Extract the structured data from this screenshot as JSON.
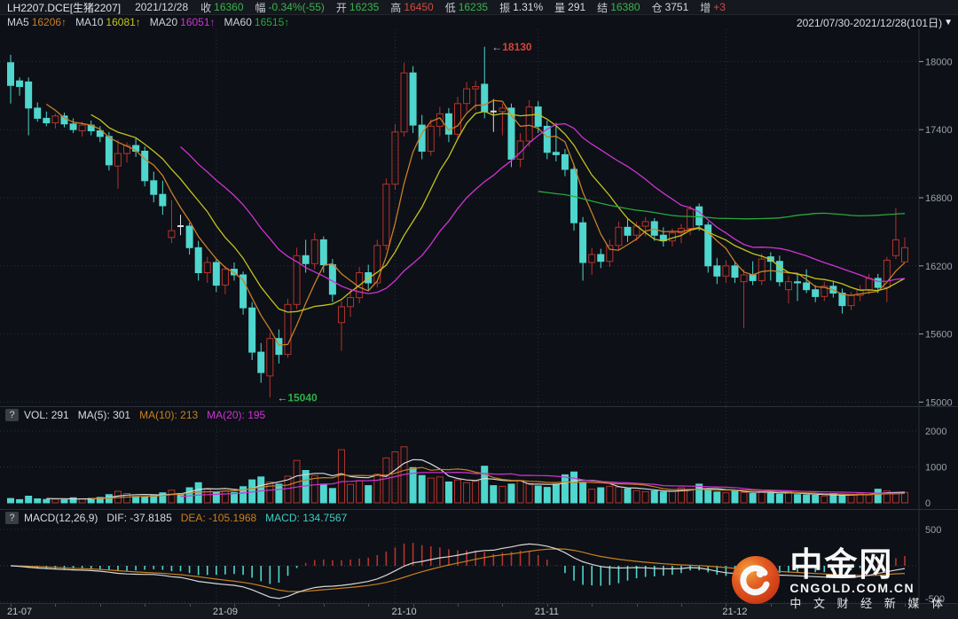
{
  "palette": {
    "green": "#3ab44d",
    "red": "#d24b41",
    "white": "#d8dce2",
    "gray": "#c6cad1",
    "up": "#b5342c",
    "down": "#4fd6ce",
    "doji": "#d9dde3",
    "ma5": "#c87f28",
    "ma10": "#c3c31d",
    "ma20": "#cf33d4",
    "ma60": "#27a93c",
    "axis_text": "#9aa0a8",
    "grid": "#2c313b",
    "axis_line": "#2c313b",
    "ann_high": "#d84338",
    "ann_low": "#2fae4a",
    "arrow": "#b9bdc3",
    "vol_ma5": "#d8d8d8",
    "vol_ma10": "#c8801f",
    "vol_ma20": "#cf33d4",
    "dif": "#d8d8d8",
    "dea": "#c8801f",
    "macd_val": "#3ecfc6"
  },
  "header": {
    "symbol": "LH2207.DCE[生猪2207]",
    "date": "2021/12/28",
    "fields": [
      {
        "label": "收",
        "value": "16360",
        "color": "green"
      },
      {
        "label": "幅",
        "value": "-0.34%(-55)",
        "color": "green"
      },
      {
        "label": "开",
        "value": "16235",
        "color": "green"
      },
      {
        "label": "高",
        "value": "16450",
        "color": "red"
      },
      {
        "label": "低",
        "value": "16235",
        "color": "green"
      },
      {
        "label": "振",
        "value": "1.31%",
        "color": "white"
      },
      {
        "label": "量",
        "value": "291",
        "color": "white"
      },
      {
        "label": "结",
        "value": "16380",
        "color": "green"
      },
      {
        "label": "仓",
        "value": "3751",
        "color": "white"
      },
      {
        "label": "增",
        "value": "+3",
        "color": "red"
      }
    ],
    "ma_row": [
      {
        "label": "MA5",
        "value": "16206↑",
        "color": "#c87f28"
      },
      {
        "label": "MA10",
        "value": "16081↑",
        "color": "#c3c31d"
      },
      {
        "label": "MA20",
        "value": "16051↑",
        "color": "#cf33d4"
      },
      {
        "label": "MA60",
        "value": "16515↑",
        "color": "#27a93c"
      }
    ],
    "range_selector": "2021/07/30-2021/12/28(101日)",
    "range_arrow": "▼"
  },
  "volume_pane": {
    "help": "?",
    "readout": [
      {
        "label": "VOL:",
        "value": "291",
        "color": "#d8dce2"
      },
      {
        "label": "MA(5):",
        "value": "301",
        "color": "#d8dce2"
      },
      {
        "label": "MA(10):",
        "value": "213",
        "color": "#c8801f"
      },
      {
        "label": "MA(20):",
        "value": "195",
        "color": "#cf33d4"
      }
    ],
    "axis_ticks": [
      2000,
      1000,
      0
    ]
  },
  "macd_pane": {
    "help": "?",
    "title": "MACD(12,26,9)",
    "readout": [
      {
        "label": "DIF:",
        "value": "-37.8185",
        "color": "#d8dce2"
      },
      {
        "label": "DEA:",
        "value": "-105.1968",
        "color": "#c8801f"
      },
      {
        "label": "MACD:",
        "value": "134.7567",
        "color": "#3ecfc6"
      }
    ],
    "axis_ticks": [
      500,
      -500
    ]
  },
  "watermark": {
    "title": "中金网",
    "domain": "CNGOLD.COM.CN",
    "tagline": "中 文 财 经 新 媒 体"
  },
  "price_axis": {
    "ticks": [
      18000,
      17400,
      16800,
      16200,
      15600,
      15000
    ]
  },
  "time_axis": {
    "labels": [
      {
        "text": "21-07",
        "i": 0
      },
      {
        "text": "21-09",
        "i": 23
      },
      {
        "text": "21-10",
        "i": 43
      },
      {
        "text": "21-11",
        "i": 59
      },
      {
        "text": "21-12",
        "i": 80
      }
    ]
  },
  "annotations": {
    "high": {
      "text": "18130",
      "i": 53,
      "price": 18130,
      "color": "#d84338"
    },
    "low": {
      "text": "15040",
      "i": 29,
      "price": 15040,
      "color": "#2fae4a"
    }
  },
  "chart_data": {
    "type": "candlestick+volume+macd",
    "symbol": "LH2207.DCE",
    "date_range": "2021/07/30-2021/12/28",
    "days": 101,
    "price_range": [
      15000,
      18000
    ],
    "vol_range": [
      0,
      2000
    ],
    "macd_range": [
      -500,
      500
    ],
    "ma_periods": [
      5,
      10,
      20,
      60
    ],
    "vol_ma_periods": [
      5,
      10,
      20
    ],
    "candles": [
      [
        17990,
        18060,
        17630,
        17790
      ],
      [
        17830,
        17860,
        17700,
        17780
      ],
      [
        17820,
        17860,
        17350,
        17590
      ],
      [
        17590,
        17640,
        17470,
        17500
      ],
      [
        17500,
        17560,
        17430,
        17460
      ],
      [
        17460,
        17540,
        17410,
        17520
      ],
      [
        17520,
        17550,
        17420,
        17450
      ],
      [
        17450,
        17500,
        17370,
        17400
      ],
      [
        17390,
        17470,
        17340,
        17440
      ],
      [
        17440,
        17480,
        17350,
        17390
      ],
      [
        17390,
        17430,
        17290,
        17340
      ],
      [
        17340,
        17380,
        17040,
        17090
      ],
      [
        17080,
        17310,
        16880,
        17190
      ],
      [
        17190,
        17290,
        17110,
        17260
      ],
      [
        17260,
        17330,
        17160,
        17210
      ],
      [
        17210,
        17250,
        16900,
        16950
      ],
      [
        16950,
        17030,
        16760,
        16830
      ],
      [
        16830,
        16950,
        16650,
        16730
      ],
      [
        16450,
        16780,
        16400,
        16510
      ],
      [
        16550,
        16650,
        16470,
        16550
      ],
      [
        16550,
        16580,
        16300,
        16360
      ],
      [
        16360,
        16420,
        16070,
        16140
      ],
      [
        16140,
        16280,
        16050,
        16230
      ],
      [
        16230,
        16260,
        15970,
        16030
      ],
      [
        16030,
        16200,
        15950,
        16170
      ],
      [
        16170,
        16230,
        16070,
        16120
      ],
      [
        16120,
        16150,
        15770,
        15830
      ],
      [
        15830,
        15880,
        15370,
        15440
      ],
      [
        15440,
        15520,
        15170,
        15260
      ],
      [
        15230,
        15610,
        15040,
        15560
      ],
      [
        15560,
        15640,
        15340,
        15420
      ],
      [
        15420,
        15910,
        15390,
        15860
      ],
      [
        15860,
        16360,
        15820,
        16290
      ],
      [
        16290,
        16430,
        16140,
        16220
      ],
      [
        16220,
        16490,
        16170,
        16430
      ],
      [
        16430,
        16460,
        16140,
        16210
      ],
      [
        16210,
        16260,
        15880,
        15950
      ],
      [
        15700,
        15890,
        15450,
        15840
      ],
      [
        15840,
        15990,
        15750,
        15920
      ],
      [
        15920,
        16190,
        15870,
        16140
      ],
      [
        16140,
        16210,
        15980,
        16050
      ],
      [
        16050,
        16430,
        16010,
        16380
      ],
      [
        16380,
        16970,
        16340,
        16920
      ],
      [
        16920,
        17450,
        16870,
        17380
      ],
      [
        17380,
        17990,
        17340,
        17900
      ],
      [
        17900,
        17960,
        17370,
        17440
      ],
      [
        17440,
        17530,
        17140,
        17210
      ],
      [
        17210,
        17490,
        17170,
        17430
      ],
      [
        17430,
        17600,
        17340,
        17540
      ],
      [
        17540,
        17590,
        17290,
        17360
      ],
      [
        17360,
        17690,
        17320,
        17630
      ],
      [
        17630,
        17820,
        17560,
        17760
      ],
      [
        17760,
        17830,
        17570,
        17780
      ],
      [
        17800,
        18130,
        17500,
        17560
      ],
      [
        17560,
        17670,
        17380,
        17560
      ],
      [
        17560,
        17630,
        17350,
        17590
      ],
      [
        17590,
        17630,
        17070,
        17140
      ],
      [
        17140,
        17370,
        17070,
        17300
      ],
      [
        17300,
        17660,
        17250,
        17600
      ],
      [
        17600,
        17650,
        17370,
        17430
      ],
      [
        17430,
        17480,
        17140,
        17200
      ],
      [
        17200,
        17460,
        17120,
        17180
      ],
      [
        17180,
        17230,
        16990,
        17050
      ],
      [
        17050,
        17100,
        16510,
        16580
      ],
      [
        16580,
        16630,
        16070,
        16230
      ],
      [
        16230,
        16360,
        16120,
        16300
      ],
      [
        16300,
        16350,
        16180,
        16240
      ],
      [
        16240,
        16430,
        16190,
        16380
      ],
      [
        16380,
        16590,
        16340,
        16540
      ],
      [
        16540,
        16610,
        16410,
        16470
      ],
      [
        16470,
        16590,
        16420,
        16550
      ],
      [
        16550,
        16630,
        16460,
        16590
      ],
      [
        16590,
        16620,
        16420,
        16470
      ],
      [
        16470,
        16540,
        16370,
        16420
      ],
      [
        16420,
        16530,
        16370,
        16490
      ],
      [
        16490,
        16570,
        16400,
        16530
      ],
      [
        16530,
        16730,
        16470,
        16700
      ],
      [
        16720,
        16750,
        16510,
        16560
      ],
      [
        16560,
        16590,
        16140,
        16200
      ],
      [
        16200,
        16270,
        16040,
        16110
      ],
      [
        16110,
        16250,
        16050,
        16200
      ],
      [
        16200,
        16240,
        16050,
        16100
      ],
      [
        16060,
        16170,
        15650,
        16120
      ],
      [
        16120,
        16240,
        16030,
        16070
      ],
      [
        16070,
        16310,
        16030,
        16260
      ],
      [
        16280,
        16320,
        16070,
        16240
      ],
      [
        16240,
        16290,
        16020,
        16060
      ],
      [
        15990,
        16110,
        15870,
        16060
      ],
      [
        16060,
        16130,
        15890,
        16050
      ],
      [
        16050,
        16170,
        15960,
        15990
      ],
      [
        15990,
        16030,
        15880,
        15930
      ],
      [
        15930,
        16060,
        15890,
        16020
      ],
      [
        16020,
        16070,
        15920,
        15960
      ],
      [
        15960,
        16000,
        15780,
        15850
      ],
      [
        15850,
        15970,
        15810,
        15940
      ],
      [
        15940,
        16030,
        15890,
        15990
      ],
      [
        15990,
        16130,
        15950,
        16090
      ],
      [
        16090,
        16130,
        15960,
        16010
      ],
      [
        16010,
        16280,
        15880,
        16250
      ],
      [
        16290,
        16710,
        16260,
        16430
      ],
      [
        16235,
        16450,
        16235,
        16360
      ]
    ],
    "volumes": [
      120,
      90,
      185,
      110,
      95,
      100,
      85,
      140,
      115,
      120,
      150,
      230,
      320,
      260,
      180,
      170,
      200,
      280,
      350,
      260,
      420,
      560,
      380,
      300,
      330,
      290,
      450,
      640,
      720,
      580,
      520,
      740,
      1180,
      900,
      760,
      520,
      400,
      1480,
      510,
      620,
      480,
      800,
      1250,
      1420,
      1560,
      980,
      760,
      690,
      720,
      580,
      640,
      560,
      600,
      1020,
      480,
      460,
      520,
      610,
      540,
      470,
      430,
      520,
      780,
      860,
      560,
      380,
      420,
      460,
      440,
      390,
      340,
      310,
      330,
      300,
      320,
      420,
      380,
      520,
      360,
      300,
      280,
      350,
      290,
      260,
      310,
      270,
      240,
      310,
      230,
      220,
      210,
      190,
      260,
      200,
      230,
      250,
      220,
      380,
      330,
      260,
      291
    ],
    "macd": {
      "dif": [
        0,
        -8,
        -20,
        -30,
        -38,
        -45,
        -50,
        -56,
        -60,
        -66,
        -74,
        -88,
        -104,
        -112,
        -116,
        -118,
        -120,
        -132,
        -150,
        -160,
        -185,
        -215,
        -230,
        -245,
        -258,
        -268,
        -290,
        -330,
        -380,
        -430,
        -450,
        -420,
        -370,
        -330,
        -300,
        -285,
        -280,
        -270,
        -255,
        -235,
        -215,
        -180,
        -130,
        -70,
        -5,
        40,
        60,
        85,
        110,
        125,
        145,
        170,
        195,
        210,
        215,
        240,
        260,
        285,
        300,
        290,
        270,
        235,
        180,
        110,
        55,
        20,
        -10,
        -25,
        -30,
        -28,
        -25,
        -28,
        -35,
        -40,
        -42,
        -38,
        -25,
        -30,
        -50,
        -75,
        -95,
        -105,
        -108,
        -110,
        -115,
        -122,
        -128,
        -132,
        -138,
        -144,
        -150,
        -155,
        -162,
        -165,
        -160,
        -148,
        -130,
        -105,
        -82,
        -58,
        -37.8
      ],
      "dea": [
        0,
        -2,
        -6,
        -11,
        -17,
        -23,
        -28,
        -34,
        -39,
        -44,
        -50,
        -58,
        -67,
        -76,
        -84,
        -91,
        -97,
        -104,
        -113,
        -122,
        -135,
        -151,
        -167,
        -183,
        -198,
        -212,
        -228,
        -248,
        -274,
        -305,
        -334,
        -351,
        -355,
        -350,
        -340,
        -329,
        -319,
        -309,
        -298,
        -285,
        -271,
        -253,
        -228,
        -196,
        -158,
        -118,
        -82,
        -49,
        -17,
        11,
        38,
        64,
        90,
        114,
        134,
        150,
        163,
        180,
        200,
        216,
        228,
        232,
        230,
        212,
        186,
        155,
        128,
        108,
        90,
        74,
        61,
        49,
        38,
        28,
        19,
        12,
        7,
        2,
        -5,
        -14,
        -25,
        -35,
        -45,
        -54,
        -62,
        -70,
        -78,
        -85,
        -92,
        -99,
        -106,
        -112,
        -119,
        -125,
        -130,
        -133,
        -133,
        -130,
        -120,
        -110,
        -105.2
      ]
    }
  }
}
